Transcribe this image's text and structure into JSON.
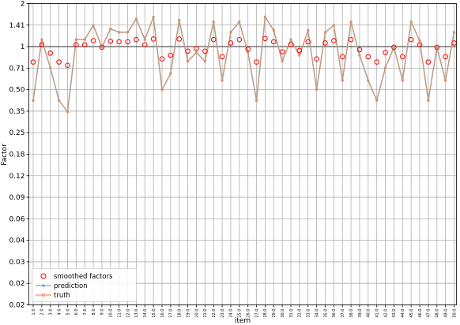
{
  "chart_data": {
    "type": "line",
    "xlabel": "item",
    "ylabel": "Factor",
    "y_scale": "log2",
    "ylim": [
      0.015625,
      2
    ],
    "y_ticks": [
      {
        "value": 2,
        "label": "2"
      },
      {
        "value": 1.41421,
        "label": "1.41"
      },
      {
        "value": 1,
        "label": "1"
      },
      {
        "value": 0.70711,
        "label": "0.71"
      },
      {
        "value": 0.5,
        "label": "0.50"
      },
      {
        "value": 0.35355,
        "label": "0.35"
      },
      {
        "value": 0.25,
        "label": "0.25"
      },
      {
        "value": 0.17678,
        "label": "0.18"
      },
      {
        "value": 0.125,
        "label": "0.12"
      },
      {
        "value": 0.08839,
        "label": "0.09"
      },
      {
        "value": 0.0625,
        "label": "0.06"
      },
      {
        "value": 0.04419,
        "label": "0.04"
      },
      {
        "value": 0.03125,
        "label": "0.03"
      },
      {
        "value": 0.0221,
        "label": "0.02"
      },
      {
        "value": 0.015625,
        "label": "0.02"
      }
    ],
    "reference_line": 1,
    "grid": true,
    "legend_position": "lower-left",
    "x": [
      "1.0",
      "2.0",
      "3.0",
      "4.0",
      "5.0",
      "6.0",
      "7.0",
      "8.0",
      "9.0",
      "10.0",
      "11.0",
      "12.0",
      "13.0",
      "14.0",
      "15.0",
      "16.0",
      "17.0",
      "18.0",
      "19.0",
      "20.0",
      "21.0",
      "22.0",
      "23.0",
      "24.0",
      "25.0",
      "26.0",
      "27.0",
      "28.0",
      "29.0",
      "30.0",
      "31.0",
      "32.0",
      "33.0",
      "34.0",
      "35.0",
      "36.0",
      "37.0",
      "38.0",
      "39.0",
      "40.0",
      "41.0",
      "42.0",
      "43.0",
      "44.0",
      "45.0",
      "46.0",
      "47.0",
      "48.0",
      "49.0",
      "50.0"
    ],
    "series": [
      {
        "name": "smoothed factors",
        "marker": "circle-open",
        "color": "#ff0000",
        "values": [
          0.78,
          1.03,
          0.9,
          0.78,
          0.74,
          1.03,
          1.03,
          1.1,
          0.99,
          1.09,
          1.08,
          1.08,
          1.12,
          1.03,
          1.13,
          0.82,
          0.87,
          1.13,
          0.93,
          0.97,
          0.93,
          1.12,
          0.85,
          1.06,
          1.12,
          0.96,
          0.78,
          1.14,
          1.08,
          0.92,
          1.03,
          0.94,
          1.08,
          0.82,
          1.06,
          1.1,
          0.85,
          1.12,
          0.95,
          0.85,
          0.78,
          0.91,
          0.99,
          0.85,
          1.12,
          1.03,
          0.78,
          0.99,
          0.85,
          1.06
        ]
      },
      {
        "name": "prediction",
        "marker": "dot",
        "color": "#7fa7c9",
        "values": [
          0.42,
          1.12,
          0.71,
          0.42,
          0.35,
          1.12,
          1.12,
          1.41,
          0.99,
          1.33,
          1.26,
          1.26,
          1.56,
          1.12,
          1.61,
          0.5,
          0.65,
          1.53,
          0.79,
          0.91,
          0.79,
          1.49,
          0.58,
          1.26,
          1.49,
          0.91,
          0.42,
          1.61,
          1.3,
          0.79,
          1.12,
          0.87,
          1.3,
          0.5,
          1.26,
          1.41,
          0.58,
          1.49,
          0.87,
          0.58,
          0.42,
          0.71,
          0.99,
          0.58,
          1.49,
          1.1,
          0.42,
          0.99,
          0.58,
          1.26
        ]
      },
      {
        "name": "truth",
        "marker": "x",
        "color": "#f4956e",
        "values": [
          0.42,
          1.12,
          0.71,
          0.42,
          0.35,
          1.12,
          1.12,
          1.41,
          0.99,
          1.33,
          1.26,
          1.26,
          1.56,
          1.12,
          1.61,
          0.5,
          0.65,
          1.53,
          0.79,
          0.91,
          0.79,
          1.49,
          0.58,
          1.26,
          1.49,
          0.91,
          0.42,
          1.61,
          1.3,
          0.79,
          1.12,
          0.87,
          1.3,
          0.5,
          1.26,
          1.41,
          0.58,
          1.49,
          0.87,
          0.58,
          0.42,
          0.71,
          0.99,
          0.58,
          1.49,
          1.1,
          0.42,
          0.99,
          0.58,
          1.26
        ]
      }
    ],
    "combined_line_color": "#c89b7b"
  }
}
